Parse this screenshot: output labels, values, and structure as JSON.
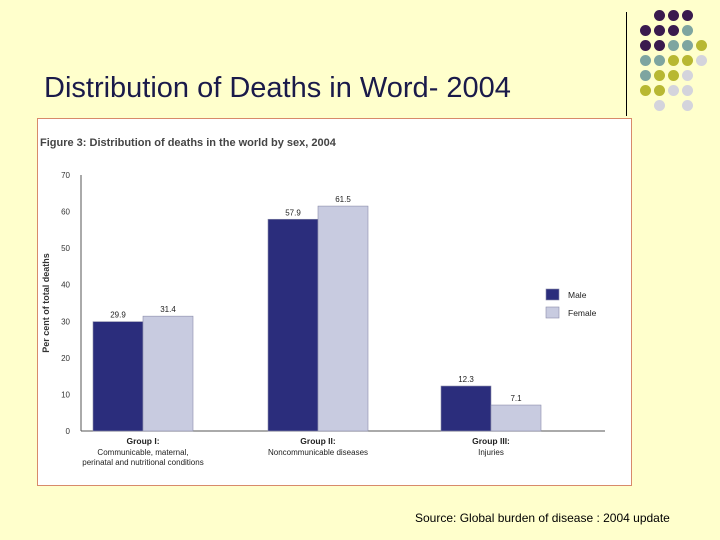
{
  "slide": {
    "title": "Distribution of Deaths in Word- 2004",
    "source": "Source: Global burden of disease : 2004 update"
  },
  "colors": {
    "background": "#ffffcc",
    "male": "#2b2d7c",
    "female": "#c8cbe0",
    "title_text": "#1a1a4a",
    "dot_purple": "#3a1a4e",
    "dot_teal": "#7ea5a0",
    "dot_olive": "#b8b832",
    "dot_grey": "#d4d4dc"
  },
  "chart_data": {
    "type": "bar",
    "title": "Figure 3: Distribution of deaths in the world by sex, 2004",
    "ylabel": "Per cent of total deaths",
    "xlabel": "",
    "ylim": [
      0,
      70
    ],
    "yticks": [
      0,
      10,
      20,
      30,
      40,
      50,
      60,
      70
    ],
    "grid": false,
    "legend_position": "right",
    "categories": [
      {
        "name": "Group I:",
        "desc": [
          "Communicable, maternal,",
          "perinatal and nutritional conditions"
        ]
      },
      {
        "name": "Group II:",
        "desc": [
          "Noncommunicable diseases"
        ]
      },
      {
        "name": "Group III:",
        "desc": [
          "Injuries"
        ]
      }
    ],
    "series": [
      {
        "name": "Male",
        "color": "#2b2d7c",
        "values": [
          29.9,
          57.9,
          12.3
        ],
        "labels": [
          "29.9",
          "57.9",
          "12.3"
        ]
      },
      {
        "name": "Female",
        "color": "#c8cbe0",
        "values": [
          31.4,
          61.5,
          7.1
        ],
        "labels": [
          "31.4",
          "61.5",
          "7.1"
        ]
      }
    ]
  }
}
